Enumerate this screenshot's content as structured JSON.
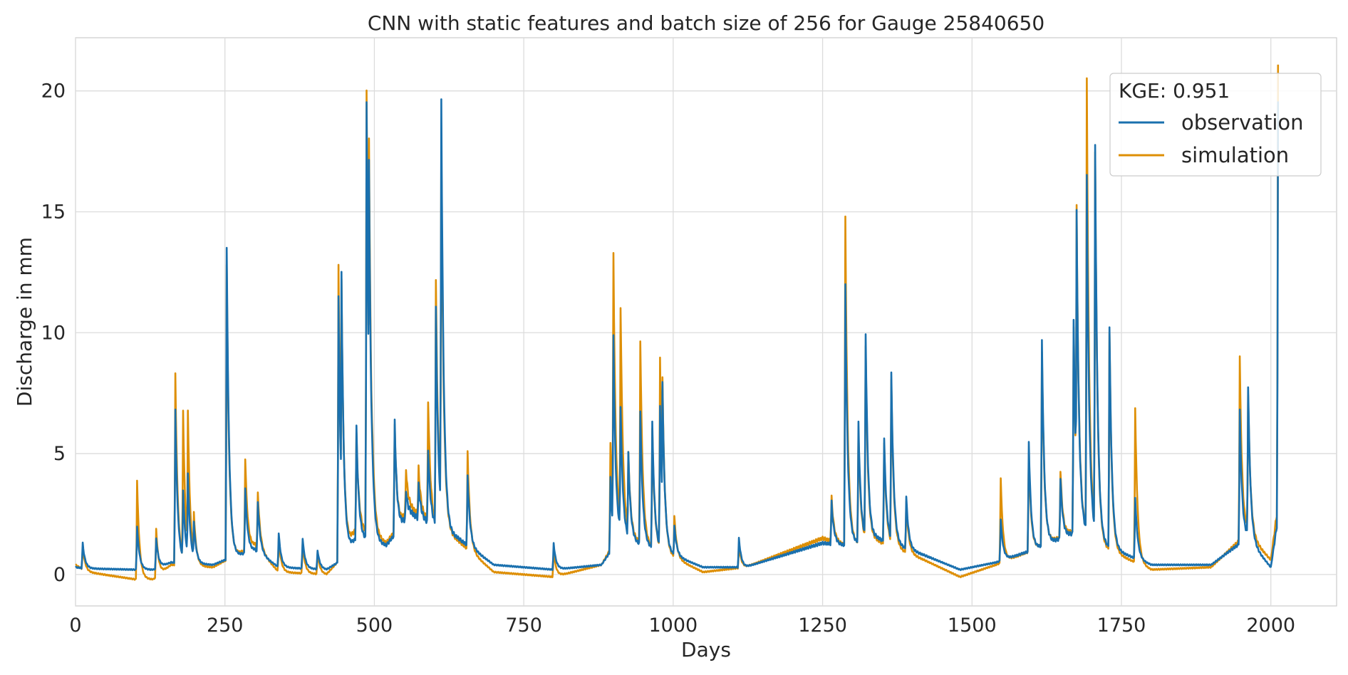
{
  "chart_data": {
    "type": "line",
    "title": "CNN with static features and batch size of 256 for Gauge 25840650",
    "xlabel": "Days",
    "ylabel": "Discharge in mm",
    "xlim": [
      0,
      2110
    ],
    "ylim": [
      -1.3,
      22.2
    ],
    "xticks": [
      0,
      250,
      500,
      750,
      1000,
      1250,
      1500,
      1750,
      2000
    ],
    "yticks": [
      0,
      5,
      10,
      15,
      20
    ],
    "xtick_labels": [
      "0",
      "250",
      "500",
      "750",
      "1000",
      "1250",
      "1500",
      "1750",
      "2000"
    ],
    "ytick_labels": [
      "0",
      "5",
      "10",
      "15",
      "20"
    ],
    "grid": true,
    "legend": {
      "title": "KGE: 0.951",
      "position": "top-right"
    },
    "series": [
      {
        "name": "observation",
        "color": "#1a70ae",
        "base": [
          [
            0,
            0.3
          ],
          [
            15,
            0.25
          ],
          [
            100,
            0.2
          ],
          [
            130,
            0.2
          ],
          [
            160,
            0.5
          ],
          [
            230,
            0.4
          ],
          [
            260,
            0.7
          ],
          [
            300,
            1.0
          ],
          [
            340,
            0.3
          ],
          [
            420,
            0.2
          ],
          [
            445,
            0.6
          ],
          [
            470,
            1.5
          ],
          [
            520,
            1.2
          ],
          [
            560,
            2.5
          ],
          [
            640,
            1.5
          ],
          [
            700,
            0.4
          ],
          [
            800,
            0.2
          ],
          [
            880,
            0.4
          ],
          [
            910,
            1.5
          ],
          [
            1000,
            0.8
          ],
          [
            1050,
            0.3
          ],
          [
            1120,
            0.3
          ],
          [
            1250,
            1.3
          ],
          [
            1290,
            1.2
          ],
          [
            1340,
            1.5
          ],
          [
            1420,
            0.8
          ],
          [
            1480,
            0.2
          ],
          [
            1540,
            0.5
          ],
          [
            1600,
            1.0
          ],
          [
            1680,
            1.8
          ],
          [
            1720,
            1.2
          ],
          [
            1800,
            0.4
          ],
          [
            1900,
            0.4
          ],
          [
            1960,
            1.5
          ],
          [
            2000,
            0.3
          ],
          [
            2010,
            2.0
          ]
        ],
        "peaks": [
          [
            12,
            1.3
          ],
          [
            103,
            2.0
          ],
          [
            135,
            1.5
          ],
          [
            167,
            6.8
          ],
          [
            180,
            3.5
          ],
          [
            188,
            4.2
          ],
          [
            198,
            2.2
          ],
          [
            253,
            13.5
          ],
          [
            284,
            3.6
          ],
          [
            305,
            3.0
          ],
          [
            340,
            1.7
          ],
          [
            380,
            1.5
          ],
          [
            405,
            1.0
          ],
          [
            440,
            11.5
          ],
          [
            445,
            12.5
          ],
          [
            470,
            6.1
          ],
          [
            487,
            19.6
          ],
          [
            491,
            17.2
          ],
          [
            497,
            5.0
          ],
          [
            534,
            6.4
          ],
          [
            553,
            3.5
          ],
          [
            574,
            3.7
          ],
          [
            590,
            5.2
          ],
          [
            603,
            11.0
          ],
          [
            612,
            19.7
          ],
          [
            656,
            4.1
          ],
          [
            800,
            1.3
          ],
          [
            895,
            4.0
          ],
          [
            900,
            9.9
          ],
          [
            912,
            7.0
          ],
          [
            925,
            5.0
          ],
          [
            945,
            6.8
          ],
          [
            965,
            6.3
          ],
          [
            978,
            7.0
          ],
          [
            982,
            8.0
          ],
          [
            1002,
            2.0
          ],
          [
            1110,
            1.5
          ],
          [
            1265,
            3.0
          ],
          [
            1288,
            12.0
          ],
          [
            1310,
            6.3
          ],
          [
            1322,
            10.0
          ],
          [
            1353,
            5.6
          ],
          [
            1365,
            8.3
          ],
          [
            1390,
            3.2
          ],
          [
            1548,
            2.3
          ],
          [
            1595,
            5.5
          ],
          [
            1617,
            9.7
          ],
          [
            1648,
            4.0
          ],
          [
            1670,
            10.6
          ],
          [
            1675,
            15.0
          ],
          [
            1692,
            16.6
          ],
          [
            1706,
            17.8
          ],
          [
            1730,
            10.2
          ],
          [
            1773,
            3.2
          ],
          [
            1948,
            6.8
          ],
          [
            1962,
            7.8
          ],
          [
            2012,
            19.5
          ]
        ]
      },
      {
        "name": "simulation",
        "color": "#de8f05",
        "base": [
          [
            0,
            0.4
          ],
          [
            20,
            0.1
          ],
          [
            100,
            -0.2
          ],
          [
            130,
            -0.2
          ],
          [
            160,
            0.4
          ],
          [
            230,
            0.3
          ],
          [
            260,
            0.7
          ],
          [
            300,
            1.2
          ],
          [
            340,
            0.1
          ],
          [
            420,
            0.0
          ],
          [
            445,
            0.7
          ],
          [
            470,
            1.9
          ],
          [
            520,
            1.3
          ],
          [
            560,
            2.7
          ],
          [
            640,
            1.4
          ],
          [
            700,
            0.1
          ],
          [
            800,
            -0.1
          ],
          [
            880,
            0.4
          ],
          [
            910,
            1.7
          ],
          [
            1000,
            0.7
          ],
          [
            1050,
            0.1
          ],
          [
            1120,
            0.3
          ],
          [
            1250,
            1.5
          ],
          [
            1290,
            1.2
          ],
          [
            1340,
            1.4
          ],
          [
            1420,
            0.6
          ],
          [
            1480,
            -0.1
          ],
          [
            1540,
            0.4
          ],
          [
            1600,
            1.0
          ],
          [
            1680,
            1.9
          ],
          [
            1720,
            1.1
          ],
          [
            1800,
            0.2
          ],
          [
            1900,
            0.3
          ],
          [
            1960,
            1.7
          ],
          [
            2000,
            0.6
          ],
          [
            2010,
            2.5
          ]
        ],
        "peaks": [
          [
            12,
            1.1
          ],
          [
            103,
            3.9
          ],
          [
            135,
            1.9
          ],
          [
            167,
            8.3
          ],
          [
            180,
            6.8
          ],
          [
            188,
            6.8
          ],
          [
            198,
            2.6
          ],
          [
            253,
            12.8
          ],
          [
            284,
            4.8
          ],
          [
            305,
            3.4
          ],
          [
            340,
            1.5
          ],
          [
            380,
            1.3
          ],
          [
            405,
            0.9
          ],
          [
            440,
            12.8
          ],
          [
            445,
            12.2
          ],
          [
            470,
            5.8
          ],
          [
            487,
            20.1
          ],
          [
            491,
            18.1
          ],
          [
            497,
            5.7
          ],
          [
            534,
            6.2
          ],
          [
            553,
            4.4
          ],
          [
            574,
            4.4
          ],
          [
            590,
            7.2
          ],
          [
            603,
            12.1
          ],
          [
            612,
            18.0
          ],
          [
            656,
            5.1
          ],
          [
            800,
            1.0
          ],
          [
            895,
            5.4
          ],
          [
            900,
            13.3
          ],
          [
            912,
            11.1
          ],
          [
            925,
            5.0
          ],
          [
            945,
            9.7
          ],
          [
            965,
            6.0
          ],
          [
            978,
            9.0
          ],
          [
            982,
            8.2
          ],
          [
            1002,
            2.4
          ],
          [
            1110,
            1.2
          ],
          [
            1265,
            3.2
          ],
          [
            1288,
            14.8
          ],
          [
            1310,
            5.9
          ],
          [
            1322,
            9.5
          ],
          [
            1353,
            5.4
          ],
          [
            1365,
            8.0
          ],
          [
            1390,
            3.0
          ],
          [
            1548,
            4.0
          ],
          [
            1595,
            5.0
          ],
          [
            1617,
            9.2
          ],
          [
            1648,
            4.3
          ],
          [
            1670,
            10.3
          ],
          [
            1675,
            15.2
          ],
          [
            1692,
            20.6
          ],
          [
            1706,
            17.5
          ],
          [
            1730,
            10.0
          ],
          [
            1773,
            6.9
          ],
          [
            1948,
            9.0
          ],
          [
            1962,
            7.5
          ],
          [
            2012,
            21.0
          ]
        ]
      }
    ]
  }
}
